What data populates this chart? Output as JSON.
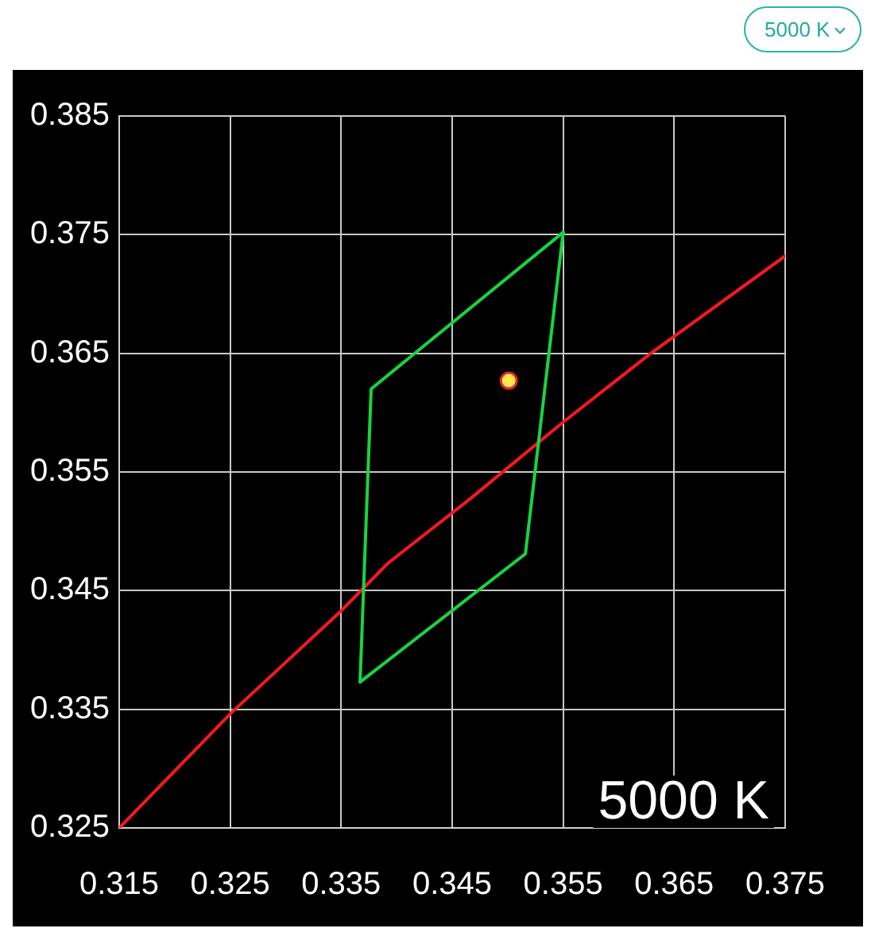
{
  "chart_data": {
    "type": "scatter",
    "title": "5000 K",
    "annotations": [
      "5000 K"
    ],
    "xlim": [
      0.315,
      0.375
    ],
    "xticks": [
      0.315,
      0.325,
      0.335,
      0.345,
      0.355,
      0.365,
      0.375
    ],
    "ylim": [
      0.325,
      0.385
    ],
    "yticks": [
      0.325,
      0.335,
      0.345,
      0.355,
      0.365,
      0.375,
      0.385
    ],
    "grid": true,
    "legend": false,
    "series": [
      {
        "type": "line",
        "color": "#f5191f",
        "x": [
          0.315,
          0.3251,
          0.335,
          0.3392,
          0.3467,
          0.355,
          0.3629,
          0.375
        ],
        "values": [
          0.325,
          0.3347,
          0.3433,
          0.3473,
          0.3528,
          0.3592,
          0.365,
          0.3732
        ]
      },
      {
        "type": "line",
        "color": "#19d43f",
        "x": [
          0.3367,
          0.3377,
          0.355
        ],
        "values": [
          0.3373,
          0.362,
          0.3752
        ]
      },
      {
        "type": "line",
        "color": "#19d43f",
        "x": [
          0.3367,
          0.3516,
          0.355
        ],
        "values": [
          0.3373,
          0.3481,
          0.3752
        ]
      },
      {
        "type": "scatter",
        "color": "#ffe84d",
        "marker": "circle",
        "x": [
          0.3501
        ],
        "values": [
          0.3627
        ]
      }
    ]
  }
}
